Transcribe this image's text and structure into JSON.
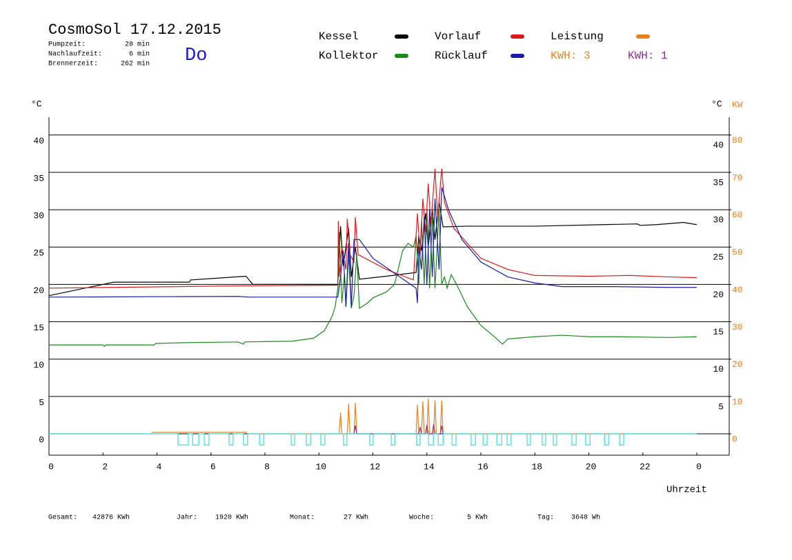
{
  "chart_data": {
    "type": "line",
    "title": "CosmoSol 17.12.2015",
    "day": "Do",
    "stats": [
      {
        "label": "Pumpzeit:",
        "value": "28 min"
      },
      {
        "label": "Nachlaufzeit:",
        "value": "6 min"
      },
      {
        "label": "Brennerzeit:",
        "value": "262 min"
      }
    ],
    "kwh_labels": [
      {
        "text": "KWH: 3",
        "color": "#e8821e"
      },
      {
        "text": "KWH: 1",
        "color": "#8a2e91"
      }
    ],
    "y_unit": "°C",
    "y_unit_right": "°C",
    "y2_unit": "KW",
    "x_label": "Uhrzeit",
    "footer": [
      {
        "label": "Gesamt:",
        "value": "42876 KWh"
      },
      {
        "label": "Jahr:",
        "value": "1920 KWh"
      },
      {
        "label": "Monat:",
        "value": "27 KWh"
      },
      {
        "label": "Woche:",
        "value": "5 KWh"
      },
      {
        "label": "Tag:",
        "value": "3648 Wh"
      }
    ],
    "xlim": [
      0,
      25.2
    ],
    "xticks": [
      0,
      2,
      4,
      6,
      8,
      10,
      12,
      14,
      16,
      18,
      20,
      22,
      {
        "value": 24,
        "label": "0"
      }
    ],
    "ylim": [
      -2.86,
      42.38
    ],
    "yticks": [
      0,
      5,
      10,
      15,
      20,
      25,
      30,
      35,
      40
    ],
    "yticks_right": [
      5,
      10,
      15,
      20,
      25,
      30,
      35,
      40
    ],
    "y2lim": [
      -5.72,
      84.76
    ],
    "y2ticks": [
      0,
      10,
      20,
      30,
      40,
      50,
      60,
      70,
      80
    ],
    "grid": true,
    "series": [
      {
        "name": "Kessel",
        "color": "#000000",
        "x": [
          0,
          2.4,
          5.2,
          5.25,
          6.5,
          7.3,
          7.55,
          10.7,
          10.8,
          10.9,
          11.0,
          11.1,
          11.2,
          11.35,
          11.5,
          12.5,
          13.6,
          13.7,
          13.8,
          13.95,
          14.05,
          14.2,
          14.3,
          14.45,
          14.6,
          15.5,
          18,
          21.8,
          21.9,
          22.5,
          23.5,
          24
        ],
        "values": [
          18.5,
          20.3,
          20.3,
          20.6,
          20.9,
          21.1,
          20.0,
          20.0,
          27.8,
          22.5,
          25,
          27.5,
          21,
          25,
          20.7,
          21.1,
          21.6,
          26.5,
          24.5,
          29.5,
          25,
          30,
          26,
          31,
          27.7,
          27.8,
          27.8,
          28.1,
          27.9,
          28.0,
          28.3,
          28.0
        ]
      },
      {
        "name": "Kollektor",
        "color": "#1a8a1a",
        "x": [
          0,
          2,
          2.05,
          2.1,
          3.9,
          3.95,
          5,
          7,
          7.2,
          7.25,
          9,
          9.8,
          10.2,
          10.5,
          10.6,
          10.7,
          10.75,
          10.85,
          10.95,
          11.0,
          11.1,
          11.2,
          11.3,
          11.4,
          11.5,
          11.8,
          12,
          12.5,
          12.8,
          13.1,
          13.3,
          13.5,
          13.6,
          13.7,
          13.8,
          13.9,
          14.0,
          14.1,
          14.2,
          14.3,
          14.45,
          14.55,
          14.65,
          14.75,
          14.9,
          15.1,
          15.5,
          16,
          16.5,
          16.8,
          17,
          18,
          19,
          20,
          21,
          23,
          24
        ],
        "values": [
          11.9,
          11.9,
          11.7,
          11.9,
          11.9,
          12.1,
          12.2,
          12.3,
          12.0,
          12.3,
          12.4,
          12.8,
          13.8,
          15.8,
          17,
          19.5,
          27,
          17.5,
          21.5,
          17,
          24,
          16.8,
          18.5,
          24,
          16.8,
          17.5,
          18.2,
          19,
          20,
          24.5,
          25.5,
          25,
          26.5,
          20,
          28.5,
          20,
          30,
          19.5,
          29,
          19.5,
          30,
          20,
          21,
          19.5,
          21.3,
          20,
          17,
          14.5,
          13,
          12,
          12.7,
          13,
          13.2,
          13,
          13,
          12.9,
          13
        ]
      },
      {
        "name": "Vorlauf",
        "color": "#dd1a1a",
        "x": [
          0,
          7,
          10.7,
          10.72,
          10.75,
          10.85,
          11.0,
          11.05,
          11.15,
          11.3,
          11.35,
          11.45,
          12.5,
          13.5,
          13.65,
          13.75,
          13.85,
          13.95,
          14.05,
          14.15,
          14.3,
          14.4,
          14.55,
          14.65,
          15,
          15.5,
          16,
          17,
          18,
          20,
          21.5,
          23,
          24
        ],
        "values": [
          19.5,
          19.8,
          19.9,
          28.5,
          21,
          25,
          22,
          28.8,
          24,
          23,
          29,
          24,
          22,
          20.6,
          29.5,
          24,
          31.5,
          27,
          33.5,
          28,
          35.5,
          29,
          35.5,
          31,
          27.5,
          25.5,
          23.5,
          22,
          21.2,
          21.1,
          21.2,
          21,
          20.9
        ]
      },
      {
        "name": "Rücklauf",
        "color": "#1a1aa8",
        "x": [
          0,
          7,
          7.4,
          10.7,
          10.8,
          10.9,
          11.0,
          11.1,
          11.2,
          11.3,
          11.5,
          12,
          13,
          13.6,
          13.65,
          13.7,
          13.8,
          13.9,
          14.0,
          14.1,
          14.2,
          14.3,
          14.45,
          14.55,
          14.8,
          15.3,
          16,
          17,
          18,
          19,
          21,
          23,
          24
        ],
        "values": [
          18.3,
          18.4,
          18.3,
          18.3,
          21,
          24.5,
          17,
          25.5,
          17,
          26,
          26,
          23.5,
          21,
          19.5,
          17.5,
          25,
          22,
          29,
          20,
          30,
          21,
          31.5,
          22,
          33,
          30,
          26,
          23,
          21,
          20.2,
          19.7,
          19.7,
          19.6,
          19.6
        ]
      },
      {
        "name": "Leistung",
        "color": "#e8821e",
        "axis": "y2",
        "x": [
          0,
          3.8,
          3.85,
          7.3,
          7.35,
          10.75,
          10.8,
          10.85,
          11.05,
          11.1,
          11.15,
          11.3,
          11.35,
          11.4,
          13.6,
          13.65,
          13.7,
          13.8,
          13.85,
          13.9,
          14.0,
          14.05,
          14.1,
          14.25,
          14.3,
          14.35,
          14.5,
          14.55,
          14.6,
          24
        ],
        "values": [
          0,
          0,
          0.4,
          0.4,
          0,
          0,
          5.7,
          0,
          0,
          8.1,
          0,
          0,
          8.3,
          0,
          0,
          7.8,
          0,
          0,
          8.7,
          0,
          0,
          9.4,
          0,
          0,
          9.0,
          0,
          0,
          8.9,
          0,
          0
        ]
      },
      {
        "color": "#8a2e91",
        "axis": "y2",
        "x": [
          11.3,
          11.35,
          11.4,
          13.7,
          13.75,
          13.8,
          13.95,
          14.0,
          14.05,
          14.2,
          14.25,
          14.3,
          14.5,
          14.55,
          14.6
        ],
        "values": [
          0,
          2.2,
          0,
          0,
          1.8,
          0,
          0,
          2.4,
          0,
          0,
          2.6,
          0,
          0,
          2.2,
          0
        ]
      },
      {
        "color": "#33e0e0",
        "x": [
          0,
          4.78,
          4.78,
          5.16,
          5.16,
          5.32,
          5.32,
          5.55,
          5.55,
          5.75,
          5.75,
          5.93,
          5.93,
          6.67,
          6.67,
          6.82,
          6.82,
          7.21,
          7.21,
          7.36,
          7.36,
          7.8,
          7.8,
          7.95,
          7.95,
          8.97,
          8.97,
          9.1,
          9.1,
          9.53,
          9.53,
          9.69,
          9.69,
          10.07,
          10.07,
          10.22,
          10.22,
          10.91,
          10.91,
          11.04,
          11.04,
          11.88,
          11.88,
          12.01,
          12.01,
          12.68,
          12.68,
          12.81,
          12.81,
          13.62,
          13.62,
          13.75,
          13.75,
          14.06,
          14.06,
          14.24,
          14.24,
          14.42,
          14.42,
          14.6,
          14.6,
          14.93,
          14.93,
          15.08,
          15.08,
          15.64,
          15.64,
          15.8,
          15.8,
          16.08,
          16.08,
          16.23,
          16.23,
          16.59,
          16.59,
          16.77,
          16.77,
          16.97,
          16.97,
          17.12,
          17.12,
          17.71,
          17.71,
          17.84,
          17.84,
          18.27,
          18.27,
          18.4,
          18.4,
          18.68,
          18.68,
          18.81,
          18.81,
          19.37,
          19.37,
          19.53,
          19.53,
          19.88,
          19.88,
          20.04,
          20.04,
          20.58,
          20.58,
          20.73,
          20.73,
          21.14,
          21.14,
          21.29,
          21.29,
          24
        ],
        "values": [
          0,
          0,
          -1.5,
          -1.5,
          0,
          0,
          -1.5,
          -1.5,
          0,
          0,
          -1.5,
          -1.5,
          0,
          0,
          -1.5,
          -1.5,
          0,
          0,
          -1.5,
          -1.5,
          0,
          0,
          -1.5,
          -1.5,
          0,
          0,
          -1.5,
          -1.5,
          0,
          0,
          -1.5,
          -1.5,
          0,
          0,
          -1.5,
          -1.5,
          0,
          0,
          -1.5,
          -1.5,
          0,
          0,
          -1.5,
          -1.5,
          0,
          0,
          -1.5,
          -1.5,
          0,
          0,
          -1.5,
          -1.5,
          0,
          0,
          -1.5,
          -1.5,
          0,
          0,
          -1.5,
          -1.5,
          0,
          0,
          -1.5,
          -1.5,
          0,
          0,
          -1.5,
          -1.5,
          0,
          0,
          -1.5,
          -1.5,
          0,
          0,
          -1.5,
          -1.5,
          0,
          0,
          -1.5,
          -1.5,
          0,
          0,
          -1.5,
          -1.5,
          0,
          0,
          -1.5,
          -1.5,
          0,
          0,
          -1.5,
          -1.5,
          0,
          0,
          -1.5,
          -1.5,
          0,
          0,
          -1.5,
          -1.5,
          0,
          0,
          -1.5,
          -1.5,
          0,
          0,
          -1.5,
          -1.5,
          0,
          0
        ]
      }
    ]
  }
}
